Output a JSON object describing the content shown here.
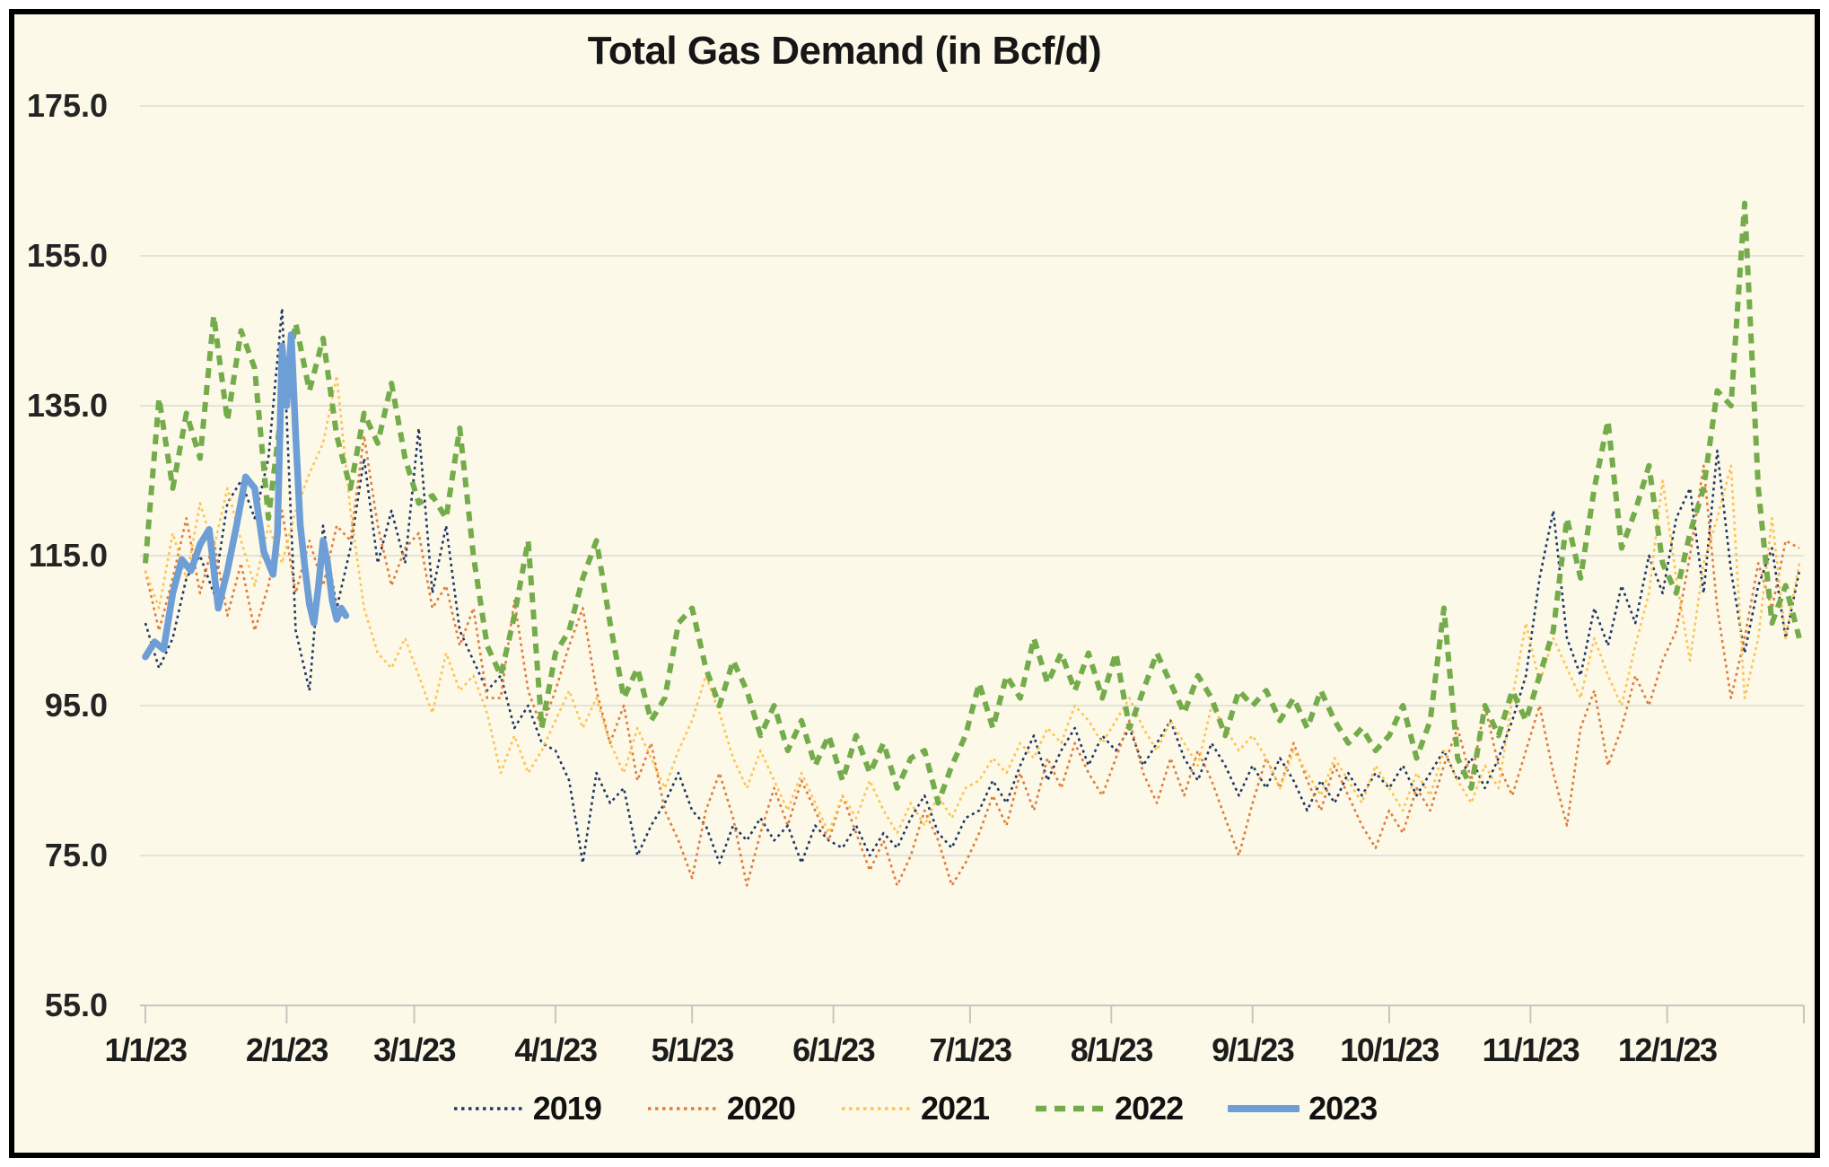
{
  "frame": {
    "background_color": "#FCF9E9",
    "border_color": "#000000",
    "gridline_color": "#DCDCD4",
    "axis_line_color": "#C6C6BF",
    "text_color": "#1C1C1C"
  },
  "chart_data": {
    "type": "line",
    "title": "Total Gas Demand (in Bcf/d)",
    "xlabel": "",
    "ylabel": "",
    "ylim": [
      55,
      175
    ],
    "grid": "horizontal",
    "legend_position": "bottom",
    "y_ticks": [
      {
        "value": 175,
        "label": "175.0"
      },
      {
        "value": 155,
        "label": "155.0"
      },
      {
        "value": 135,
        "label": "135.0"
      },
      {
        "value": 115,
        "label": "115.0"
      },
      {
        "value": 95,
        "label": "95.0"
      },
      {
        "value": 75,
        "label": "75.0"
      },
      {
        "value": 55,
        "label": "55.0"
      }
    ],
    "x_axis": {
      "tick_labels": [
        "1/1/23",
        "2/1/23",
        "3/1/23",
        "4/1/23",
        "5/1/23",
        "6/1/23",
        "7/1/23",
        "8/1/23",
        "9/1/23",
        "10/1/23",
        "11/1/23",
        "12/1/23"
      ],
      "month_start_days": [
        0,
        31,
        59,
        90,
        120,
        151,
        181,
        212,
        243,
        273,
        304,
        334
      ],
      "day_range": [
        0,
        364
      ]
    },
    "series": [
      {
        "name": "2019",
        "color": "#1F3864",
        "line_style": "dotted",
        "line_width": 2.6,
        "day_step": 3,
        "values": [
          106,
          100,
          104,
          112,
          115,
          110,
          122,
          125,
          120,
          128,
          148,
          105,
          97,
          119,
          108,
          116,
          128,
          114,
          121,
          114,
          132,
          110,
          119,
          105,
          101,
          97,
          99,
          92,
          95,
          90,
          89,
          85,
          74,
          86,
          82,
          84,
          75,
          79,
          82,
          86,
          81,
          79,
          74,
          79,
          77,
          80,
          77,
          79,
          74,
          79,
          77,
          76,
          79,
          75,
          78,
          76,
          80,
          83,
          78,
          76,
          80,
          81,
          85,
          82,
          87,
          91,
          85,
          89,
          92,
          87,
          91,
          89,
          92,
          87,
          90,
          93,
          88,
          85,
          90,
          87,
          83,
          87,
          84,
          88,
          85,
          81,
          85,
          82,
          86,
          83,
          86,
          84,
          87,
          83,
          86,
          89,
          85,
          88,
          84,
          88,
          93,
          99,
          112,
          121,
          104,
          99,
          108,
          103,
          111,
          106,
          115,
          110,
          120,
          124,
          110,
          129,
          113,
          102,
          111,
          116,
          104,
          113
        ]
      },
      {
        "name": "2020",
        "color": "#E07C3A",
        "line_style": "dotted",
        "line_width": 2.6,
        "day_step": 3,
        "values": [
          113,
          105,
          112,
          120,
          110,
          117,
          107,
          114,
          105,
          111,
          121,
          110,
          117,
          111,
          119,
          117,
          131,
          119,
          111,
          116,
          118,
          108,
          111,
          103,
          108,
          96,
          96,
          109,
          97,
          92,
          97,
          103,
          108,
          97,
          90,
          95,
          85,
          90,
          81,
          77,
          72,
          81,
          86,
          80,
          71,
          78,
          84,
          79,
          85,
          81,
          77,
          83,
          78,
          73,
          77,
          71,
          75,
          81,
          77,
          71,
          74,
          78,
          83,
          79,
          86,
          81,
          88,
          84,
          90,
          86,
          83,
          88,
          93,
          86,
          82,
          88,
          83,
          89,
          85,
          80,
          75,
          82,
          88,
          84,
          90,
          85,
          81,
          87,
          83,
          79,
          76,
          81,
          78,
          84,
          81,
          87,
          92,
          85,
          95,
          87,
          83,
          89,
          95,
          86,
          79,
          92,
          97,
          87,
          92,
          99,
          95,
          101,
          105,
          115,
          127,
          108,
          96,
          104,
          114,
          108,
          117,
          116
        ]
      },
      {
        "name": "2021",
        "color": "#FDC350",
        "line_style": "dotted",
        "line_width": 2.6,
        "day_step": 3,
        "values": [
          113,
          108,
          118,
          112,
          122,
          116,
          124,
          117,
          111,
          119,
          114,
          121,
          126,
          130,
          139,
          121,
          108,
          102,
          100,
          104,
          99,
          94,
          102,
          97,
          99,
          94,
          86,
          91,
          86,
          89,
          93,
          97,
          92,
          96,
          90,
          86,
          92,
          88,
          84,
          89,
          93,
          99,
          94,
          88,
          84,
          89,
          85,
          81,
          86,
          82,
          78,
          83,
          80,
          85,
          81,
          78,
          82,
          79,
          83,
          80,
          84,
          85,
          88,
          86,
          90,
          88,
          92,
          90,
          95,
          93,
          90,
          93,
          96,
          92,
          89,
          93,
          90,
          87,
          95,
          92,
          89,
          91,
          88,
          84,
          89,
          86,
          83,
          88,
          85,
          82,
          87,
          84,
          81,
          86,
          83,
          89,
          85,
          82,
          87,
          84,
          96,
          106,
          98,
          104,
          100,
          96,
          104,
          99,
          95,
          103,
          110,
          125,
          112,
          101,
          114,
          120,
          127,
          96,
          104,
          120,
          104,
          114
        ]
      },
      {
        "name": "2022",
        "color": "#74AC4C",
        "line_style": "dashed",
        "line_width": 6,
        "day_step": 3,
        "values": [
          114,
          136,
          124,
          134,
          128,
          147,
          133,
          145,
          140,
          120,
          135,
          146,
          137,
          144,
          131,
          124,
          134,
          130,
          138,
          128,
          122,
          123,
          120,
          132,
          115,
          103,
          99,
          107,
          117,
          92,
          102,
          105,
          112,
          117,
          106,
          96,
          100,
          93,
          96,
          106,
          108,
          100,
          95,
          101,
          97,
          91,
          95,
          89,
          93,
          87,
          91,
          85,
          91,
          86,
          90,
          84,
          88,
          89,
          82,
          87,
          91,
          98,
          92,
          99,
          96,
          104,
          98,
          102,
          97,
          102,
          96,
          102,
          92,
          97,
          102,
          98,
          94,
          99,
          96,
          91,
          97,
          95,
          97,
          93,
          96,
          92,
          97,
          93,
          90,
          92,
          89,
          91,
          95,
          88,
          93,
          108,
          88,
          84,
          95,
          91,
          97,
          93,
          99,
          105,
          120,
          112,
          124,
          133,
          116,
          121,
          127,
          114,
          110,
          118,
          124,
          137,
          135,
          162,
          124,
          106,
          111,
          104
        ]
      },
      {
        "name": "2023",
        "color": "#6D9ED6",
        "line_style": "solid",
        "line_width": 7.5,
        "days": [
          0,
          2,
          4,
          6,
          8,
          10,
          12,
          14,
          16,
          18,
          20,
          22,
          24,
          26,
          28,
          29,
          30,
          31,
          32,
          33,
          34,
          35,
          36,
          37,
          38,
          39,
          40,
          41,
          42,
          43,
          44
        ],
        "values": [
          101.5,
          103.5,
          102.5,
          110,
          114.5,
          113,
          116.5,
          118.5,
          108,
          113,
          119,
          125.5,
          124,
          115.5,
          112.5,
          118,
          143,
          135,
          144.5,
          131,
          119,
          113.5,
          108.5,
          106,
          111,
          117,
          114,
          109,
          106.5,
          108,
          107
        ]
      }
    ]
  }
}
